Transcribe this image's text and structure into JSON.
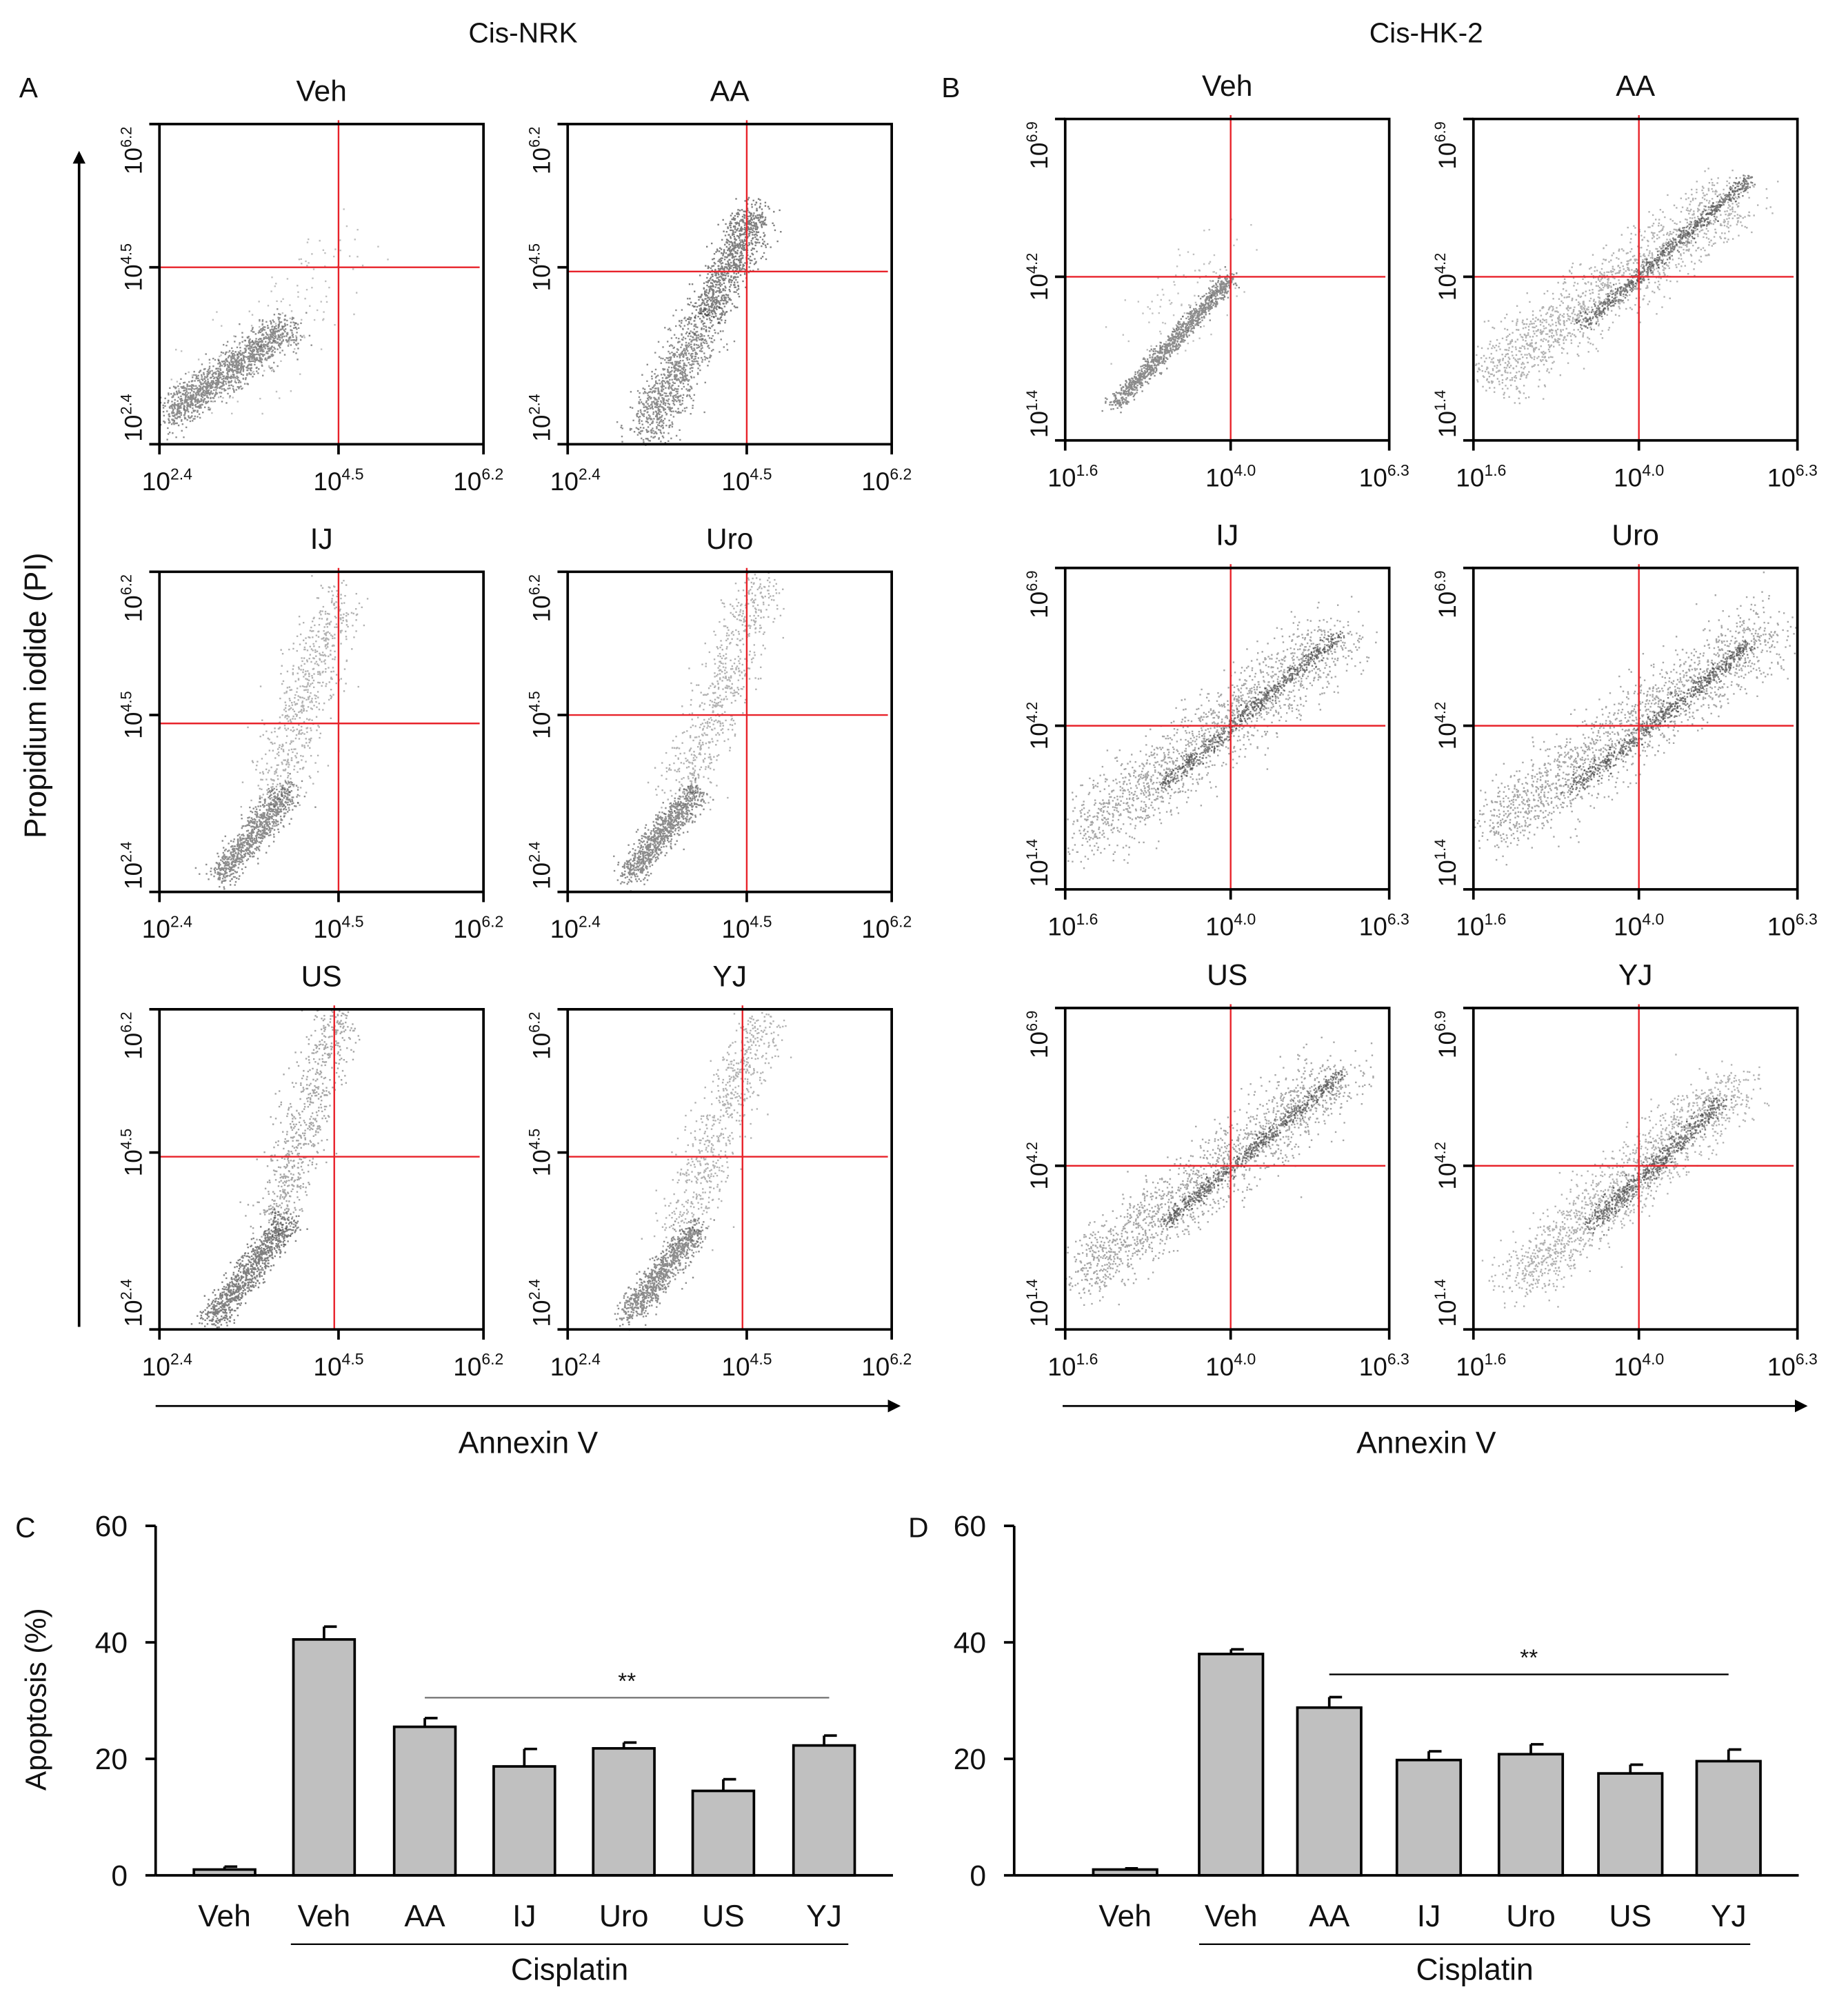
{
  "figure": {
    "group_titles": [
      "Cis-NRK",
      "Cis-HK-2"
    ],
    "panel_letters": [
      "A",
      "B",
      "C",
      "D"
    ],
    "y_axis_label_flow": "Propidium iodide (PI)",
    "x_axis_label_flow": "Annexin V"
  },
  "chart_data": [
    {
      "type": "scatter",
      "panel": "A",
      "group": "Cis-NRK",
      "x_label": "Annexin V",
      "y_label": "Propidium iodide (PI)",
      "x_range_log10": [
        2.4,
        6.2
      ],
      "y_range_log10": [
        2.4,
        6.2
      ],
      "x_ticks": [
        {
          "base": "10",
          "exp": "2.4"
        },
        {
          "base": "10",
          "exp": "4.5"
        },
        {
          "base": "10",
          "exp": "6.2"
        }
      ],
      "y_ticks": [
        {
          "base": "10",
          "exp": "2.4"
        },
        {
          "base": "10",
          "exp": "4.5"
        },
        {
          "base": "10",
          "exp": "6.2"
        }
      ],
      "plots": [
        {
          "title": "Veh",
          "gate_x_log10": 4.5,
          "gate_y_log10": 4.5
        },
        {
          "title": "AA",
          "gate_x_log10": 4.5,
          "gate_y_log10": 4.45
        },
        {
          "title": "IJ",
          "gate_x_log10": 4.5,
          "gate_y_log10": 4.4
        },
        {
          "title": "Uro",
          "gate_x_log10": 4.5,
          "gate_y_log10": 4.5
        },
        {
          "title": "US",
          "gate_x_log10": 4.45,
          "gate_y_log10": 4.45
        },
        {
          "title": "YJ",
          "gate_x_log10": 4.45,
          "gate_y_log10": 4.45
        }
      ]
    },
    {
      "type": "scatter",
      "panel": "B",
      "group": "Cis-HK-2",
      "x_label": "Annexin V",
      "y_label": "Propidium iodide (PI)",
      "x_range_log10": [
        1.6,
        6.3
      ],
      "y_range_log10": [
        1.4,
        6.9
      ],
      "x_ticks": [
        {
          "base": "10",
          "exp": "1.6"
        },
        {
          "base": "10",
          "exp": "4.0"
        },
        {
          "base": "10",
          "exp": "6.3"
        }
      ],
      "y_ticks": [
        {
          "base": "10",
          "exp": "1.4"
        },
        {
          "base": "10",
          "exp": "4.2"
        },
        {
          "base": "10",
          "exp": "6.9"
        }
      ],
      "plots": [
        {
          "title": "Veh",
          "gate_x_log10": 4.0,
          "gate_y_log10": 4.2
        },
        {
          "title": "AA",
          "gate_x_log10": 4.0,
          "gate_y_log10": 4.2
        },
        {
          "title": "IJ",
          "gate_x_log10": 4.0,
          "gate_y_log10": 4.2
        },
        {
          "title": "Uro",
          "gate_x_log10": 4.0,
          "gate_y_log10": 4.2
        },
        {
          "title": "US",
          "gate_x_log10": 4.0,
          "gate_y_log10": 4.2
        },
        {
          "title": "YJ",
          "gate_x_log10": 4.0,
          "gate_y_log10": 4.2
        }
      ]
    },
    {
      "type": "bar",
      "panel": "C",
      "categories": [
        "Veh",
        "Veh",
        "AA",
        "IJ",
        "Uro",
        "US",
        "YJ"
      ],
      "values": [
        1.0,
        40.5,
        25.5,
        18.7,
        21.8,
        14.5,
        22.3
      ],
      "errors": [
        0.5,
        2.2,
        1.5,
        3.0,
        1.0,
        2.0,
        1.7
      ],
      "ylabel": "Apoptosis (%)",
      "xlabel": "",
      "ylim": [
        0,
        60
      ],
      "yticks": [
        0,
        20,
        40,
        60
      ],
      "group_label": "Cisplatin",
      "significance": {
        "label": "**",
        "from": "AA",
        "to": "YJ",
        "level": 30.5
      },
      "bar_color": "#c0c0c0"
    },
    {
      "type": "bar",
      "panel": "D",
      "categories": [
        "Veh",
        "Veh",
        "AA",
        "IJ",
        "Uro",
        "US",
        "YJ"
      ],
      "values": [
        1.0,
        38.0,
        28.8,
        19.8,
        20.8,
        17.5,
        19.6
      ],
      "errors": [
        0.2,
        0.8,
        1.8,
        1.5,
        1.7,
        1.5,
        2.0
      ],
      "ylabel": "",
      "xlabel": "",
      "ylim": [
        0,
        60
      ],
      "yticks": [
        0,
        20,
        40,
        60
      ],
      "group_label": "Cisplatin",
      "significance": {
        "label": "**",
        "from": "AA",
        "to": "YJ",
        "level": 34.5
      },
      "bar_color": "#c0c0c0"
    }
  ],
  "colors": {
    "gate_line": "#e8222a",
    "axis": "#000000",
    "bar": "#c0c0c0"
  }
}
